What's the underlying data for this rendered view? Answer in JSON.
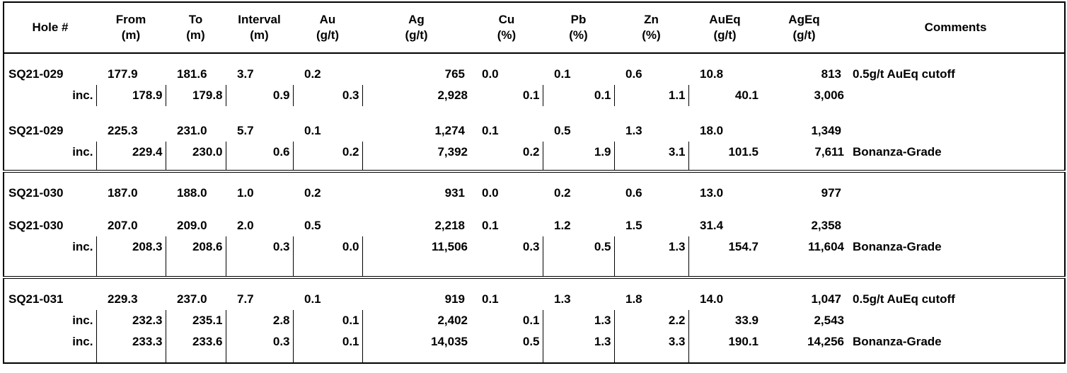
{
  "table": {
    "header": [
      [
        "Hole #"
      ],
      [
        "From",
        "(m)"
      ],
      [
        "To",
        "(m)"
      ],
      [
        "Interval",
        "(m)"
      ],
      [
        "Au",
        "(g/t)"
      ],
      [
        "Ag",
        "(g/t)"
      ],
      [
        "Cu",
        "(%)"
      ],
      [
        "Pb",
        "(%)"
      ],
      [
        "Zn",
        "(%)"
      ],
      [
        "AuEq",
        "(g/t)"
      ],
      [
        "AgEq",
        "(g/t)"
      ],
      [
        "Comments"
      ]
    ],
    "groups": [
      [
        [
          "SQ21-029",
          "177.9",
          "181.6",
          "3.7",
          "0.2",
          "765",
          "0.0",
          "0.1",
          "0.6",
          "10.8",
          "813",
          "0.5g/t AuEq cutoff"
        ],
        [
          "inc.",
          "178.9",
          "179.8",
          "0.9",
          "0.3",
          "2,928",
          "0.1",
          "0.1",
          "1.1",
          "40.1",
          "3,006",
          null
        ],
        [
          "SQ21-029",
          "225.3",
          "231.0",
          "5.7",
          "0.1",
          "1,274",
          "0.1",
          "0.5",
          "1.3",
          "18.0",
          "1,349",
          null
        ],
        [
          "inc.",
          "229.4",
          "230.0",
          "0.6",
          "0.2",
          "7,392",
          "0.2",
          "1.9",
          "3.1",
          "101.5",
          "7,611",
          "Bonanza-Grade"
        ]
      ],
      [
        [
          "SQ21-030",
          "187.0",
          "188.0",
          "1.0",
          "0.2",
          "931",
          "0.0",
          "0.2",
          "0.6",
          "13.0",
          "977",
          null
        ],
        [
          "SQ21-030",
          "207.0",
          "209.0",
          "2.0",
          "0.5",
          "2,218",
          "0.1",
          "1.2",
          "1.5",
          "31.4",
          "2,358",
          null
        ],
        [
          "inc.",
          "208.3",
          "208.6",
          "0.3",
          "0.0",
          "11,506",
          "0.3",
          "0.5",
          "1.3",
          "154.7",
          "11,604",
          "Bonanza-Grade"
        ]
      ],
      [
        [
          "SQ21-031",
          "229.3",
          "237.0",
          "7.7",
          "0.1",
          "919",
          "0.1",
          "1.3",
          "1.8",
          "14.0",
          "1,047",
          "0.5g/t AuEq cutoff"
        ],
        [
          "inc.",
          "232.3",
          "235.1",
          "2.8",
          "0.1",
          "2,402",
          "0.1",
          "1.3",
          "2.2",
          "33.9",
          "2,543",
          null
        ],
        [
          "inc.",
          "233.3",
          "233.6",
          "0.3",
          "0.1",
          "14,035",
          "0.5",
          "1.3",
          "3.3",
          "190.1",
          "14,256",
          "Bonanza-Grade"
        ]
      ]
    ]
  }
}
